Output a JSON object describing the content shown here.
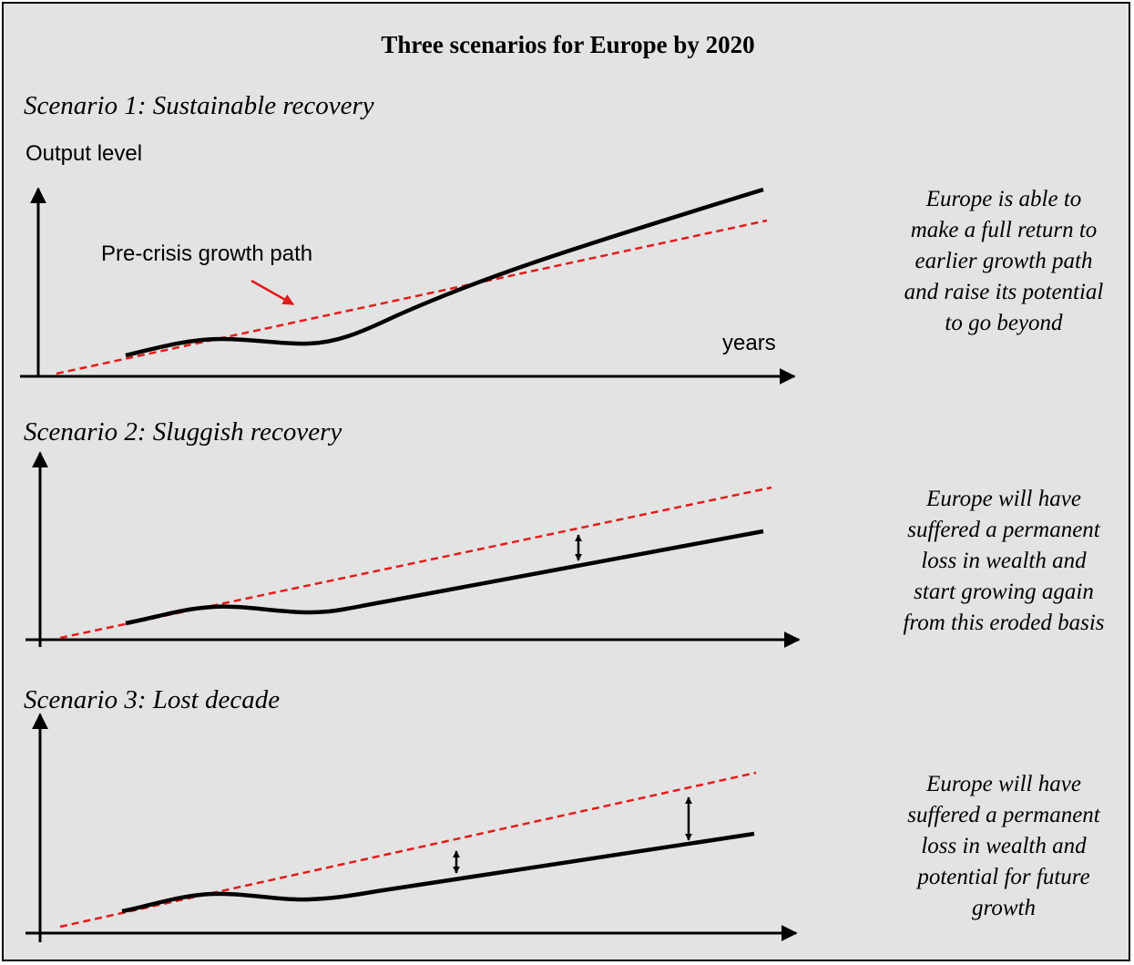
{
  "title": "Three scenarios for Europe by 2020",
  "y_axis_label": "Output level",
  "x_axis_label": "years",
  "pre_crisis_label": "Pre-crisis growth path",
  "colors": {
    "background": "#e3e3e3",
    "pre_crisis_path": "#e41b1b",
    "output_path": "#000000"
  },
  "scenarios": [
    {
      "title": "Scenario 1: Sustainable recovery",
      "description": [
        "Europe is able to",
        "make a full return to",
        "earlier growth path",
        "and raise its potential",
        "to go beyond"
      ]
    },
    {
      "title": "Scenario 2: Sluggish recovery",
      "description": [
        "Europe will have",
        "suffered a permanent",
        "loss in wealth and",
        "start growing again",
        "from this eroded basis"
      ]
    },
    {
      "title": "Scenario 3: Lost decade",
      "description": [
        "Europe will have",
        "suffered a permanent",
        "loss in wealth and",
        "potential for future",
        "growth"
      ]
    }
  ]
}
